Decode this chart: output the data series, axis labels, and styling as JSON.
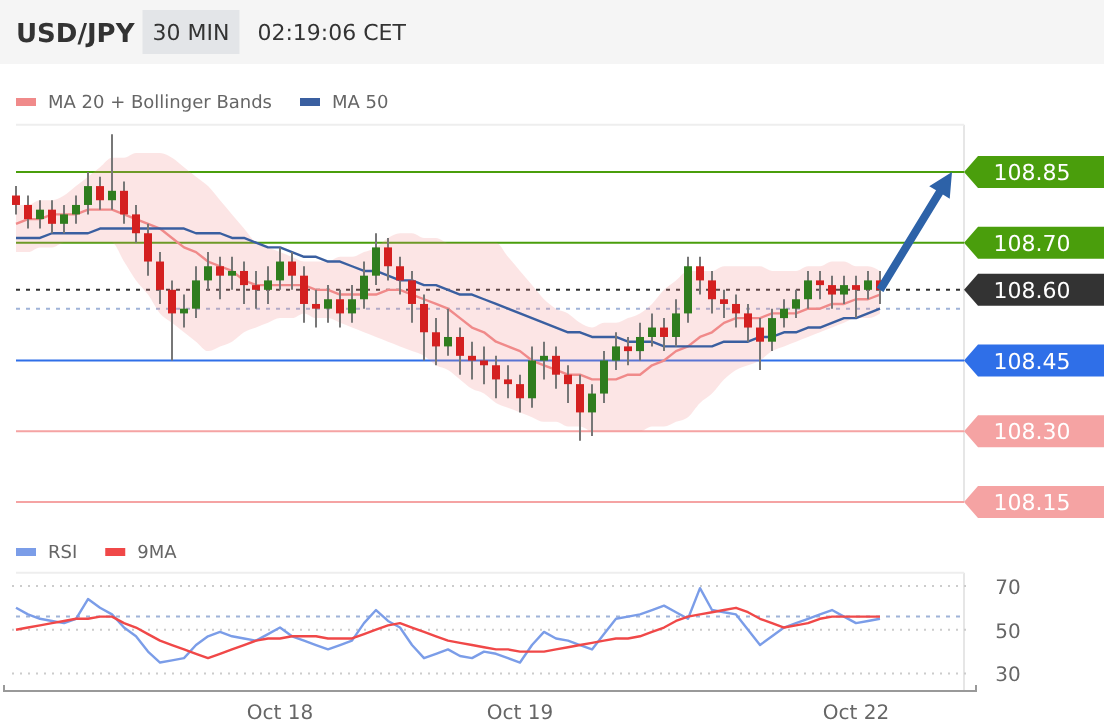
{
  "chart_data": [
    {
      "type": "candlestick",
      "title": "USD/JPY",
      "subtitle": "30 MIN",
      "annotations": [
        "02:19:06 CET"
      ],
      "legend": "top left",
      "tick_labels": false,
      "ylim": [
        108.15,
        108.95
      ],
      "yticks": [
        {
          "value": 108.15,
          "label": "108.15"
        },
        {
          "value": 108.3,
          "label": "108.30"
        },
        {
          "value": 108.45,
          "label": "108.45"
        },
        {
          "value": 108.6,
          "label": "108.60"
        },
        {
          "value": 108.7,
          "label": "108.70"
        },
        {
          "value": 108.85,
          "label": "108.85"
        }
      ],
      "categories": [
        null,
        null,
        null,
        null,
        null,
        null,
        null,
        null,
        null,
        null,
        null,
        null,
        null,
        null,
        null,
        null,
        null,
        null,
        null,
        null,
        null,
        null,
        null,
        null,
        null,
        null,
        null,
        null,
        null,
        null,
        null,
        null,
        null,
        null,
        null,
        null,
        null,
        null,
        null,
        null,
        null,
        null,
        null,
        null,
        null,
        null,
        null,
        null,
        null,
        null,
        null,
        null,
        null,
        null,
        null,
        null,
        null,
        null,
        null,
        null,
        null,
        null,
        null,
        null,
        null,
        null,
        null,
        null,
        null,
        null,
        null,
        null,
        null
      ],
      "ohlc": [
        [
          108.8,
          108.82,
          108.76,
          108.78
        ],
        [
          108.78,
          108.8,
          108.73,
          108.75
        ],
        [
          108.75,
          108.79,
          108.73,
          108.77
        ],
        [
          108.77,
          108.79,
          108.72,
          108.74
        ],
        [
          108.74,
          108.78,
          108.72,
          108.76
        ],
        [
          108.76,
          108.8,
          108.74,
          108.78
        ],
        [
          108.78,
          108.85,
          108.76,
          108.82
        ],
        [
          108.82,
          108.84,
          108.77,
          108.79
        ],
        [
          108.79,
          108.93,
          108.77,
          108.81
        ],
        [
          108.81,
          108.83,
          108.74,
          108.76
        ],
        [
          108.76,
          108.78,
          108.7,
          108.72
        ],
        [
          108.72,
          108.74,
          108.63,
          108.66
        ],
        [
          108.66,
          108.68,
          108.57,
          108.6
        ],
        [
          108.6,
          108.62,
          108.45,
          108.55
        ],
        [
          108.55,
          108.59,
          108.52,
          108.56
        ],
        [
          108.56,
          108.65,
          108.54,
          108.62
        ],
        [
          108.62,
          108.68,
          108.6,
          108.65
        ],
        [
          108.65,
          108.67,
          108.58,
          108.63
        ],
        [
          108.63,
          108.67,
          108.6,
          108.64
        ],
        [
          108.64,
          108.66,
          108.57,
          108.61
        ],
        [
          108.61,
          108.64,
          108.56,
          108.6
        ],
        [
          108.6,
          108.65,
          108.57,
          108.62
        ],
        [
          108.62,
          108.69,
          108.6,
          108.66
        ],
        [
          108.66,
          108.68,
          108.6,
          108.63
        ],
        [
          108.63,
          108.65,
          108.53,
          108.57
        ],
        [
          108.57,
          108.6,
          108.52,
          108.56
        ],
        [
          108.56,
          108.61,
          108.53,
          108.58
        ],
        [
          108.58,
          108.6,
          108.52,
          108.55
        ],
        [
          108.55,
          108.61,
          108.53,
          108.58
        ],
        [
          108.58,
          108.66,
          108.56,
          108.63
        ],
        [
          108.63,
          108.72,
          108.61,
          108.69
        ],
        [
          108.69,
          108.71,
          108.62,
          108.65
        ],
        [
          108.65,
          108.67,
          108.59,
          108.62
        ],
        [
          108.62,
          108.64,
          108.53,
          108.57
        ],
        [
          108.57,
          108.59,
          108.45,
          108.51
        ],
        [
          108.51,
          108.54,
          108.44,
          108.48
        ],
        [
          108.48,
          108.56,
          108.46,
          108.5
        ],
        [
          108.5,
          108.52,
          108.42,
          108.46
        ],
        [
          108.46,
          108.49,
          108.41,
          108.45
        ],
        [
          108.45,
          108.48,
          108.4,
          108.44
        ],
        [
          108.44,
          108.46,
          108.37,
          108.41
        ],
        [
          108.41,
          108.44,
          108.37,
          108.4
        ],
        [
          108.4,
          108.42,
          108.34,
          108.37
        ],
        [
          108.37,
          108.48,
          108.35,
          108.45
        ],
        [
          108.45,
          108.49,
          108.41,
          108.46
        ],
        [
          108.46,
          108.48,
          108.39,
          108.42
        ],
        [
          108.42,
          108.44,
          108.36,
          108.4
        ],
        [
          108.4,
          108.42,
          108.28,
          108.34
        ],
        [
          108.34,
          108.4,
          108.29,
          108.38
        ],
        [
          108.38,
          108.47,
          108.36,
          108.45
        ],
        [
          108.45,
          108.51,
          108.43,
          108.48
        ],
        [
          108.48,
          108.5,
          108.44,
          108.47
        ],
        [
          108.47,
          108.53,
          108.45,
          108.5
        ],
        [
          108.5,
          108.55,
          108.48,
          108.52
        ],
        [
          108.52,
          108.54,
          108.47,
          108.5
        ],
        [
          108.5,
          108.58,
          108.48,
          108.55
        ],
        [
          108.55,
          108.67,
          108.53,
          108.65
        ],
        [
          108.65,
          108.67,
          108.59,
          108.62
        ],
        [
          108.62,
          108.64,
          108.55,
          108.58
        ],
        [
          108.58,
          108.6,
          108.54,
          108.57
        ],
        [
          108.57,
          108.59,
          108.52,
          108.55
        ],
        [
          108.55,
          108.57,
          108.49,
          108.52
        ],
        [
          108.52,
          108.54,
          108.43,
          108.49
        ],
        [
          108.49,
          108.56,
          108.47,
          108.54
        ],
        [
          108.54,
          108.58,
          108.52,
          108.56
        ],
        [
          108.56,
          108.6,
          108.54,
          108.58
        ],
        [
          108.58,
          108.64,
          108.56,
          108.62
        ],
        [
          108.62,
          108.64,
          108.58,
          108.61
        ],
        [
          108.61,
          108.63,
          108.56,
          108.59
        ],
        [
          108.59,
          108.63,
          108.57,
          108.61
        ],
        [
          108.61,
          108.63,
          108.54,
          108.6
        ],
        [
          108.6,
          108.64,
          108.58,
          108.62
        ],
        [
          108.62,
          108.64,
          108.57,
          108.6
        ]
      ],
      "series": [
        {
          "name": "MA 20 + Bollinger Bands",
          "type": "line",
          "color": "#f08a8a",
          "values": [
            108.74,
            108.75,
            108.75,
            108.76,
            108.76,
            108.76,
            108.77,
            108.77,
            108.77,
            108.76,
            108.75,
            108.74,
            108.73,
            108.71,
            108.69,
            108.68,
            108.66,
            108.65,
            108.64,
            108.62,
            108.61,
            108.61,
            108.61,
            108.61,
            108.61,
            108.6,
            108.6,
            108.59,
            108.59,
            108.59,
            108.59,
            108.6,
            108.6,
            108.59,
            108.58,
            108.57,
            108.56,
            108.54,
            108.52,
            108.51,
            108.49,
            108.48,
            108.47,
            108.45,
            108.44,
            108.43,
            108.42,
            108.42,
            108.41,
            108.41,
            108.41,
            108.42,
            108.42,
            108.44,
            108.45,
            108.47,
            108.48,
            108.5,
            108.51,
            108.53,
            108.54,
            108.54,
            108.54,
            108.55,
            108.55,
            108.55,
            108.56,
            108.56,
            108.57,
            108.57,
            108.58,
            108.58,
            108.59
          ],
          "upper": [
            108.78,
            108.78,
            108.79,
            108.79,
            108.8,
            108.82,
            108.84,
            108.86,
            108.88,
            108.88,
            108.89,
            108.89,
            108.89,
            108.88,
            108.86,
            108.84,
            108.82,
            108.79,
            108.76,
            108.73,
            108.7,
            108.69,
            108.68,
            108.67,
            108.66,
            108.66,
            108.66,
            108.67,
            108.67,
            108.68,
            108.69,
            108.71,
            108.72,
            108.72,
            108.71,
            108.71,
            108.7,
            108.7,
            108.7,
            108.7,
            108.7,
            108.67,
            108.64,
            108.61,
            108.58,
            108.56,
            108.55,
            108.53,
            108.52,
            108.53,
            108.53,
            108.54,
            108.55,
            108.57,
            108.6,
            108.62,
            108.64,
            108.64,
            108.64,
            108.65,
            108.65,
            108.65,
            108.65,
            108.64,
            108.64,
            108.64,
            108.65,
            108.65,
            108.66,
            108.66,
            108.65,
            108.65,
            108.64
          ],
          "lower": [
            108.68,
            108.68,
            108.69,
            108.69,
            108.7,
            108.7,
            108.7,
            108.7,
            108.7,
            108.66,
            108.62,
            108.59,
            108.55,
            108.53,
            108.51,
            108.49,
            108.47,
            108.48,
            108.49,
            108.51,
            108.52,
            108.53,
            108.54,
            108.54,
            108.55,
            108.54,
            108.54,
            108.53,
            108.52,
            108.51,
            108.5,
            108.49,
            108.48,
            108.47,
            108.46,
            108.44,
            108.43,
            108.41,
            108.39,
            108.38,
            108.36,
            108.35,
            108.34,
            108.33,
            108.32,
            108.32,
            108.31,
            108.31,
            108.3,
            108.3,
            108.3,
            108.3,
            108.3,
            108.31,
            108.31,
            108.32,
            108.33,
            108.36,
            108.38,
            108.41,
            108.43,
            108.44,
            108.45,
            108.47,
            108.48,
            108.49,
            108.5,
            108.51,
            108.52,
            108.53,
            108.54,
            108.54,
            108.55
          ]
        },
        {
          "name": "MA 50",
          "type": "line",
          "color": "#3a5fa0",
          "values": [
            108.71,
            108.71,
            108.71,
            108.72,
            108.72,
            108.72,
            108.72,
            108.73,
            108.73,
            108.73,
            108.73,
            108.73,
            108.73,
            108.73,
            108.73,
            108.72,
            108.72,
            108.72,
            108.71,
            108.71,
            108.7,
            108.69,
            108.69,
            108.68,
            108.67,
            108.67,
            108.66,
            108.66,
            108.65,
            108.64,
            108.64,
            108.63,
            108.62,
            108.62,
            108.61,
            108.61,
            108.6,
            108.59,
            108.59,
            108.58,
            108.57,
            108.56,
            108.55,
            108.54,
            108.53,
            108.52,
            108.51,
            108.51,
            108.5,
            108.5,
            108.5,
            108.49,
            108.49,
            108.49,
            108.48,
            108.48,
            108.48,
            108.48,
            108.48,
            108.49,
            108.49,
            108.49,
            108.5,
            108.5,
            108.51,
            108.51,
            108.52,
            108.52,
            108.53,
            108.54,
            108.54,
            108.55,
            108.56
          ]
        }
      ],
      "ref_lines": [
        {
          "axis": "y",
          "value": 108.85,
          "color": "#4a9e0c"
        },
        {
          "axis": "y",
          "value": 108.7,
          "color": "#4a9e0c"
        },
        {
          "axis": "y",
          "value": 108.6,
          "color": "#333333",
          "line_style": "dotted"
        },
        {
          "axis": "y",
          "value": 108.56,
          "color": "#9fb3d8",
          "line_style": "dotted"
        },
        {
          "axis": "y",
          "value": 108.45,
          "color": "#2f6fe8"
        },
        {
          "axis": "y",
          "value": 108.3,
          "color": "#f5a3a3"
        },
        {
          "axis": "y",
          "value": 108.15,
          "color": "#f5a3a3"
        }
      ]
    },
    {
      "type": "line",
      "legend": "top left",
      "grid": "y",
      "ylim": [
        22,
        76
      ],
      "yticks": [
        30,
        50,
        70
      ],
      "categories": [
        null,
        null,
        null,
        null,
        null,
        null,
        null,
        null,
        null,
        null,
        null,
        null,
        null,
        null,
        null,
        null,
        null,
        null,
        null,
        null,
        null,
        null,
        "Oct 18",
        null,
        null,
        null,
        null,
        null,
        null,
        null,
        null,
        null,
        null,
        null,
        null,
        null,
        null,
        null,
        null,
        null,
        null,
        null,
        "Oct 19",
        null,
        null,
        null,
        null,
        null,
        null,
        null,
        null,
        null,
        null,
        null,
        null,
        null,
        null,
        null,
        null,
        null,
        null,
        null,
        null,
        null,
        null,
        null,
        null,
        null,
        null,
        null,
        "Oct 22",
        null,
        null
      ],
      "series": [
        {
          "name": "RSI",
          "color": "#7b9de8",
          "values": [
            60,
            57,
            55,
            54,
            53,
            55,
            64,
            60,
            57,
            51,
            47,
            40,
            35,
            36,
            37,
            43,
            47,
            49,
            47,
            46,
            45,
            48,
            51,
            47,
            45,
            43,
            41,
            43,
            45,
            53,
            59,
            54,
            51,
            43,
            37,
            39,
            41,
            38,
            37,
            40,
            39,
            37,
            35,
            43,
            49,
            46,
            45,
            43,
            41,
            48,
            55,
            56,
            57,
            59,
            61,
            58,
            55,
            69,
            59,
            58,
            57,
            50,
            43,
            47,
            51,
            53,
            55,
            57,
            59,
            56,
            53,
            54,
            55
          ]
        },
        {
          "name": "9MA",
          "color": "#f04848",
          "values": [
            50,
            51,
            52,
            53,
            54,
            55,
            55,
            56,
            56,
            53,
            51,
            48,
            45,
            43,
            41,
            39,
            37,
            39,
            41,
            43,
            45,
            46,
            46,
            47,
            47,
            47,
            46,
            46,
            46,
            48,
            50,
            52,
            53,
            51,
            49,
            47,
            45,
            44,
            43,
            42,
            41,
            41,
            40,
            40,
            40,
            41,
            42,
            43,
            44,
            45,
            46,
            46,
            47,
            49,
            51,
            54,
            56,
            57,
            58,
            59,
            60,
            58,
            55,
            53,
            51,
            52,
            53,
            55,
            56,
            56,
            56,
            56,
            56
          ]
        }
      ],
      "ref_lines": [
        {
          "axis": "y",
          "value": 56,
          "color": "#9fb3d8",
          "line_style": "dotted"
        }
      ]
    }
  ]
}
